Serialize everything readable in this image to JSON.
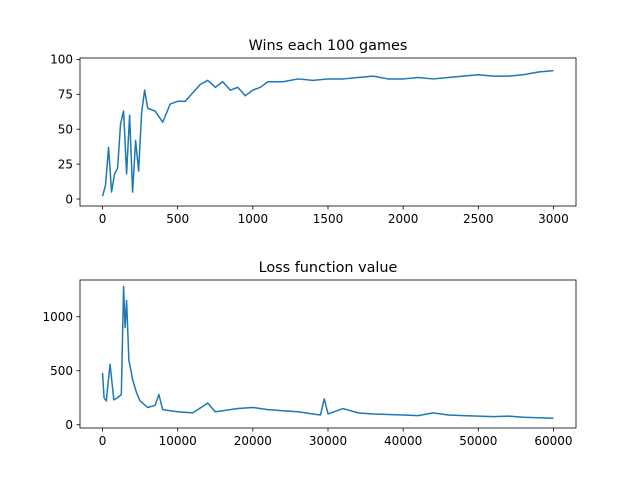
{
  "chart_data": [
    {
      "type": "line",
      "title": "Wins each 100 games",
      "xlabel": "",
      "ylabel": "",
      "xlim": [
        -150,
        3150
      ],
      "ylim": [
        -5,
        101
      ],
      "xticks": [
        0,
        500,
        1000,
        1500,
        2000,
        2500,
        3000
      ],
      "yticks": [
        0,
        25,
        50,
        75,
        100
      ],
      "grid": false,
      "color": "#1f77b4",
      "series": [
        {
          "x": [
            0,
            20,
            40,
            60,
            80,
            100,
            120,
            140,
            160,
            180,
            200,
            220,
            240,
            260,
            280,
            300,
            350,
            400,
            450,
            500,
            550,
            600,
            650,
            700,
            750,
            800,
            850,
            900,
            950,
            1000,
            1050,
            1100,
            1200,
            1300,
            1400,
            1500,
            1600,
            1700,
            1800,
            1900,
            2000,
            2100,
            2200,
            2300,
            2400,
            2500,
            2600,
            2700,
            2800,
            2900,
            3000
          ],
          "values": [
            2,
            10,
            37,
            5,
            18,
            22,
            54,
            63,
            18,
            60,
            5,
            42,
            20,
            62,
            78,
            65,
            63,
            55,
            68,
            70,
            70,
            76,
            82,
            85,
            80,
            84,
            78,
            80,
            74,
            78,
            80,
            84,
            84,
            86,
            85,
            86,
            86,
            87,
            88,
            86,
            86,
            87,
            86,
            87,
            88,
            89,
            88,
            88,
            89,
            91,
            92
          ]
        }
      ]
    },
    {
      "type": "line",
      "title": "Loss function value",
      "xlabel": "",
      "ylabel": "",
      "xlim": [
        -3000,
        63000
      ],
      "ylim": [
        -30,
        1340
      ],
      "xticks": [
        0,
        10000,
        20000,
        30000,
        40000,
        50000,
        60000
      ],
      "yticks": [
        0,
        500,
        1000
      ],
      "grid": false,
      "color": "#1f77b4",
      "series": [
        {
          "x": [
            0,
            200,
            500,
            1000,
            1500,
            2000,
            2500,
            2800,
            3000,
            3200,
            3500,
            4000,
            4500,
            5000,
            6000,
            7000,
            7500,
            8000,
            9000,
            10000,
            12000,
            14000,
            15000,
            16000,
            18000,
            20000,
            22000,
            24000,
            26000,
            28000,
            29000,
            29500,
            30000,
            32000,
            34000,
            36000,
            38000,
            40000,
            42000,
            44000,
            46000,
            48000,
            50000,
            52000,
            54000,
            56000,
            58000,
            60000
          ],
          "values": [
            480,
            250,
            220,
            560,
            230,
            250,
            280,
            1280,
            900,
            1150,
            600,
            420,
            300,
            220,
            160,
            180,
            280,
            140,
            130,
            120,
            110,
            200,
            120,
            130,
            150,
            160,
            140,
            130,
            120,
            100,
            90,
            240,
            100,
            150,
            110,
            100,
            95,
            90,
            85,
            110,
            90,
            85,
            80,
            75,
            80,
            70,
            65,
            60
          ]
        }
      ]
    }
  ]
}
